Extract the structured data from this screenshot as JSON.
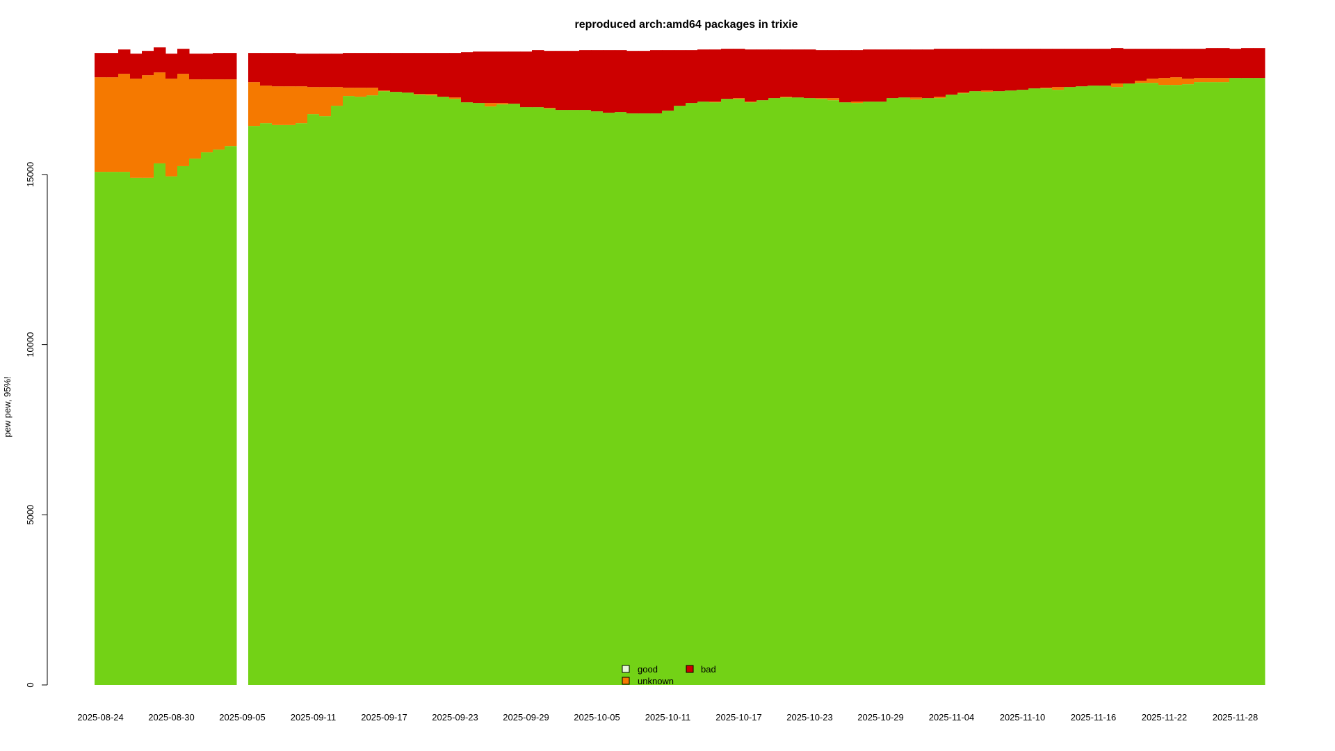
{
  "chart_data": {
    "type": "bar",
    "stacked": true,
    "title": "reproduced arch:amd64 packages in trixie",
    "xlabel": "",
    "ylabel": "pew pew, 95%!",
    "ylim": [
      0,
      18750
    ],
    "yticks": [
      0,
      5000,
      10000,
      15000
    ],
    "x_start": "2025-08-24",
    "x_step_days": 1,
    "missing_dates": [
      "2025-09-05"
    ],
    "xtick_labels": [
      "2025-08-24",
      "2025-08-30",
      "2025-09-05",
      "2025-09-11",
      "2025-09-17",
      "2025-09-23",
      "2025-09-29",
      "2025-10-05",
      "2025-10-11",
      "2025-10-17",
      "2025-10-23",
      "2025-10-29",
      "2025-11-04",
      "2025-11-10",
      "2025-11-16",
      "2025-11-22",
      "2025-11-28"
    ],
    "grid": false,
    "legend": {
      "position": "bottom-center",
      "entries": [
        "good",
        "unknown",
        "bad"
      ]
    },
    "colors": {
      "good": "#73d216",
      "unknown": "#f57900",
      "bad": "#cc0000"
    },
    "series": [
      {
        "name": "good",
        "values": [
          15077,
          15077,
          15077,
          14900,
          14900,
          15326,
          14945,
          15244,
          15466,
          15650,
          15731,
          15833,
          null,
          16426,
          16507,
          16452,
          16452,
          16507,
          16773,
          16712,
          17019,
          17305,
          17284,
          17325,
          17447,
          17427,
          17406,
          17345,
          17325,
          17284,
          17222,
          17120,
          17100,
          16998,
          17059,
          17079,
          16977,
          16977,
          16937,
          16896,
          16896,
          16896,
          16855,
          16814,
          16835,
          16794,
          16794,
          16794,
          16875,
          17018,
          17100,
          17141,
          17120,
          17222,
          17222,
          17120,
          17181,
          17243,
          17263,
          17263,
          17243,
          17222,
          17181,
          17120,
          17100,
          17141,
          17141,
          17243,
          17263,
          17202,
          17243,
          17243,
          17345,
          17386,
          17447,
          17427,
          17447,
          17467,
          17488,
          17529,
          17529,
          17488,
          17569,
          17590,
          17611,
          17611,
          17569,
          17672,
          17692,
          17692,
          17631,
          17631,
          17652,
          17713,
          17713,
          17713,
          17835,
          17835,
          17835
        ]
      },
      {
        "name": "unknown",
        "values": [
          2779,
          2779,
          2881,
          2915,
          3017,
          2673,
          2870,
          2714,
          2329,
          2145,
          2064,
          1962,
          null,
          1287,
          1104,
          1138,
          1138,
          1083,
          796,
          857,
          550,
          244,
          265,
          224,
          20,
          0,
          0,
          21,
          41,
          0,
          41,
          0,
          0,
          102,
          41,
          0,
          0,
          0,
          20,
          0,
          0,
          0,
          0,
          0,
          0,
          0,
          0,
          0,
          0,
          0,
          0,
          0,
          21,
          0,
          21,
          21,
          0,
          0,
          21,
          0,
          0,
          21,
          62,
          0,
          41,
          0,
          0,
          0,
          0,
          61,
          0,
          41,
          0,
          20,
          0,
          40,
          0,
          0,
          0,
          0,
          20,
          81,
          0,
          0,
          0,
          0,
          103,
          0,
          62,
          123,
          204,
          225,
          163,
          122,
          122,
          122,
          0,
          0,
          0
        ]
      },
      {
        "name": "bad",
        "values": [
          715,
          715,
          715,
          735,
          715,
          735,
          735,
          735,
          755,
          755,
          776,
          776,
          null,
          858,
          960,
          981,
          981,
          960,
          981,
          981,
          981,
          1022,
          1022,
          1022,
          1104,
          1144,
          1165,
          1205,
          1205,
          1287,
          1308,
          1471,
          1512,
          1512,
          1512,
          1533,
          1635,
          1676,
          1675,
          1736,
          1736,
          1757,
          1798,
          1839,
          1818,
          1838,
          1838,
          1859,
          1778,
          1635,
          1553,
          1532,
          1532,
          1471,
          1450,
          1532,
          1492,
          1430,
          1389,
          1410,
          1430,
          1410,
          1410,
          1533,
          1512,
          1532,
          1532,
          1430,
          1410,
          1410,
          1430,
          1409,
          1348,
          1287,
          1246,
          1226,
          1246,
          1226,
          1205,
          1164,
          1144,
          1124,
          1124,
          1103,
          1082,
          1082,
          1042,
          1021,
          939,
          878,
          858,
          837,
          878,
          858,
          879,
          879,
          858,
          879,
          879
        ]
      }
    ]
  }
}
